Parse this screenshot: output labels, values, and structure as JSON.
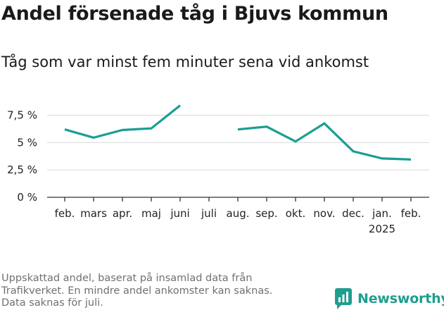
{
  "title": "Andel försenade tåg i Bjuvs kommun",
  "subtitle": "Tåg som var minst fem minuter sena vid ankomst",
  "footnote": {
    "line1": "Uppskattad andel, baserat på insamlad data från",
    "line2": "Trafikverket. En mindre andel ankomster kan saknas.",
    "line3": "Data saknas för juli."
  },
  "brand": {
    "name": "Newsworthy",
    "icon": "newsworthy-logo-icon"
  },
  "colors": {
    "line": "#1a9e91",
    "grid": "#d9d9d9",
    "axis": "#333333",
    "brand": "#1f9e8f"
  },
  "chart_data": {
    "type": "line",
    "categories": [
      "feb.",
      "mars",
      "apr.",
      "maj",
      "juni",
      "juli",
      "aug.",
      "sep.",
      "okt.",
      "nov.",
      "dec.",
      "jan.",
      "feb."
    ],
    "year_label": "2025",
    "year_label_under": "jan.",
    "series": [
      {
        "values": [
          6.2,
          5.45,
          6.15,
          6.3,
          8.4,
          null,
          6.2,
          6.45,
          5.1,
          6.75,
          4.2,
          3.55,
          3.45
        ]
      }
    ],
    "ylim": [
      0,
      8.5
    ],
    "yticks": [
      {
        "value": 0,
        "label": "0 %"
      },
      {
        "value": 2.5,
        "label": "2,5 %"
      },
      {
        "value": 5,
        "label": "5 %"
      },
      {
        "value": 7.5,
        "label": "7,5 %"
      }
    ],
    "grid": true
  }
}
